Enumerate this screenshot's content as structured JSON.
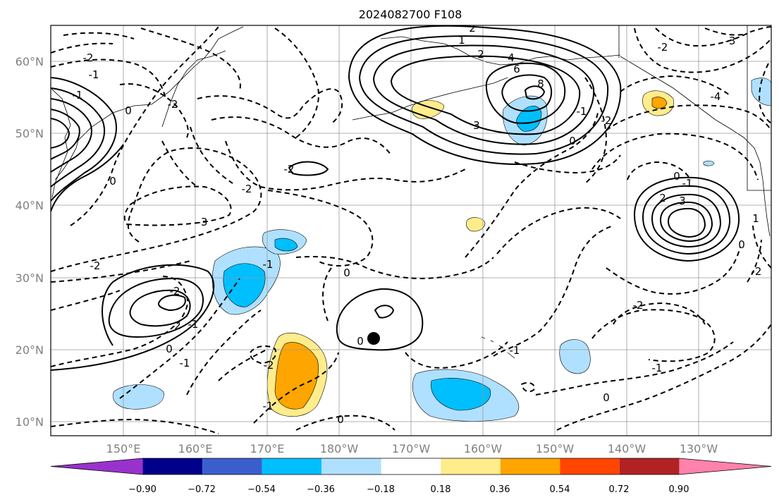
{
  "title": "2024082700 F108",
  "map": {
    "lat_labels": [
      "60°N",
      "50°N",
      "40°N",
      "30°N",
      "20°N",
      "10°N"
    ],
    "lon_labels": [
      "150°E",
      "160°E",
      "170°E",
      "180°W",
      "170°W",
      "160°W",
      "150°W",
      "140°W",
      "130°W"
    ],
    "grid": true,
    "contour_labels": [
      "-2",
      "-1",
      "-2",
      "0",
      "-1",
      "-2",
      "-3",
      "-2",
      "0",
      "-1",
      "-2",
      "2",
      "1",
      "2",
      "4",
      "6",
      "8",
      "3",
      "0",
      "-2",
      "-3",
      "-4",
      "0",
      "-1",
      "-2",
      "2",
      "3",
      "-2",
      "-1",
      "1",
      "0",
      "-1",
      "-2",
      "-1",
      "2",
      "-2",
      "-1",
      "0",
      "-1",
      "-2",
      "0",
      "0",
      "0",
      "-1",
      "0"
    ],
    "marker": "storm-position-dot",
    "colors": {
      "purple": "#9932cc",
      "navy": "#00008b",
      "royal_blue": "#3a5fcd",
      "deep_sky_blue": "#00bfff",
      "light_sky_blue": "#b0e0ff",
      "white": "#ffffff",
      "light_yellow": "#ffec8b",
      "orange": "#ffa500",
      "orange_red": "#ff4500",
      "firebrick": "#b22222",
      "pink": "#ff82ab"
    }
  },
  "colorbar": {
    "ticks": [
      "−0.90",
      "−0.72",
      "−0.54",
      "−0.36",
      "−0.18",
      "0.18",
      "0.36",
      "0.54",
      "0.72",
      "0.90"
    ],
    "colors": [
      "#9932cc",
      "#00008b",
      "#3a5fcd",
      "#00bfff",
      "#b0e0ff",
      "#ffffff",
      "#ffec8b",
      "#ffa500",
      "#ff4500",
      "#b22222",
      "#ff82ab"
    ]
  }
}
